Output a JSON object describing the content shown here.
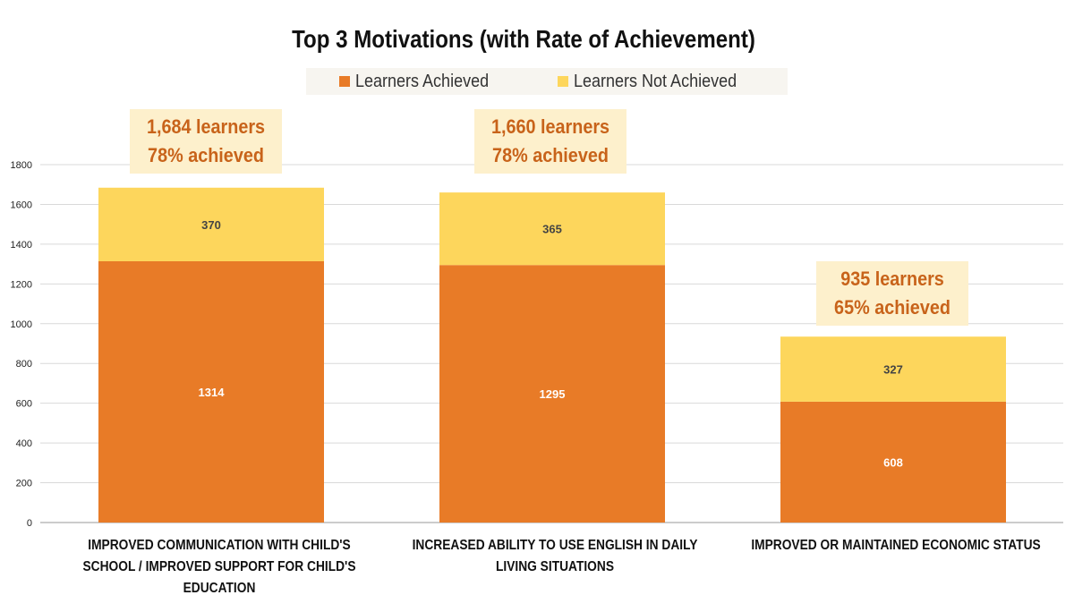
{
  "chart_data": {
    "type": "bar",
    "stacked": true,
    "title": "Top 3 Motivations (with Rate of Achievement)",
    "categories": [
      "IMPROVED COMMUNICATION WITH CHILD'S SCHOOL / IMPROVED SUPPORT FOR CHILD'S EDUCATION",
      "INCREASED ABILITY TO USE ENGLISH IN DAILY LIVING SITUATIONS",
      "IMPROVED OR MAINTAINED ECONOMIC STATUS"
    ],
    "series": [
      {
        "name": "Learners Achieved",
        "values": [
          1314,
          1295,
          608
        ],
        "color": "#e87b27",
        "label_color": "#ffffff"
      },
      {
        "name": "Learners Not Achieved",
        "values": [
          370,
          365,
          327
        ],
        "color": "#fdd65c",
        "label_color": "#444444"
      }
    ],
    "annotations": [
      {
        "line1": "1,684 learners",
        "line2": "78% achieved"
      },
      {
        "line1": "1,660 learners",
        "line2": "78% achieved"
      },
      {
        "line1": "935 learners",
        "line2": "65% achieved"
      }
    ],
    "ylim": [
      0,
      1800
    ],
    "yticks": [
      0,
      200,
      400,
      600,
      800,
      1000,
      1200,
      1400,
      1600,
      1800
    ],
    "grid": true,
    "legend_position": "top",
    "xlabel": "",
    "ylabel": ""
  }
}
